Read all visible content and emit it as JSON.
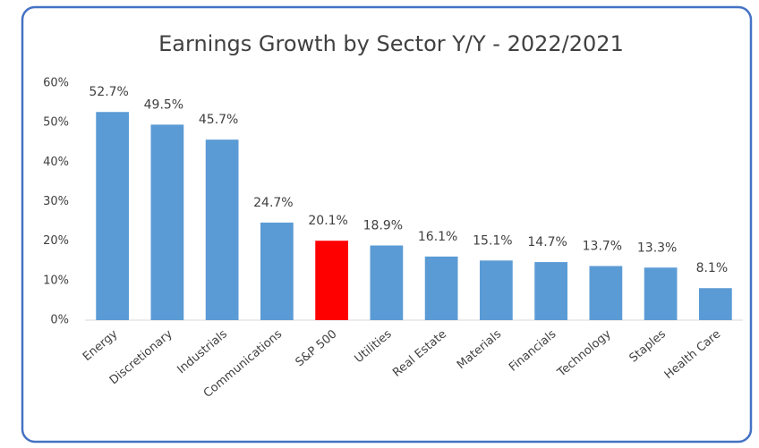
{
  "chart_data": {
    "type": "bar",
    "title": "Earnings Growth by Sector Y/Y - 2022/2021",
    "categories": [
      "Energy",
      "Discretionary",
      "Industrials",
      "Communications",
      "S&P 500",
      "Utilities",
      "Real Estate",
      "Materials",
      "Financials",
      "Technology",
      "Staples",
      "Health Care"
    ],
    "values": [
      52.7,
      49.5,
      45.7,
      24.7,
      20.1,
      18.9,
      16.1,
      15.1,
      14.7,
      13.7,
      13.3,
      8.1
    ],
    "value_labels": [
      "52.7%",
      "49.5%",
      "45.7%",
      "24.7%",
      "20.1%",
      "18.9%",
      "16.1%",
      "15.1%",
      "14.7%",
      "13.7%",
      "13.3%",
      "8.1%"
    ],
    "colors": [
      "#5b9bd5",
      "#5b9bd5",
      "#5b9bd5",
      "#5b9bd5",
      "#ff0000",
      "#5b9bd5",
      "#5b9bd5",
      "#5b9bd5",
      "#5b9bd5",
      "#5b9bd5",
      "#5b9bd5",
      "#5b9bd5"
    ],
    "ylim": [
      0,
      60
    ],
    "yticks": [
      {
        "value": 0,
        "label": "0%"
      },
      {
        "value": 10,
        "label": "10%"
      },
      {
        "value": 20,
        "label": "20%"
      },
      {
        "value": 30,
        "label": "30%"
      },
      {
        "value": 40,
        "label": "40%"
      },
      {
        "value": 50,
        "label": "50%"
      },
      {
        "value": 60,
        "label": "60%"
      }
    ],
    "grid": false
  }
}
